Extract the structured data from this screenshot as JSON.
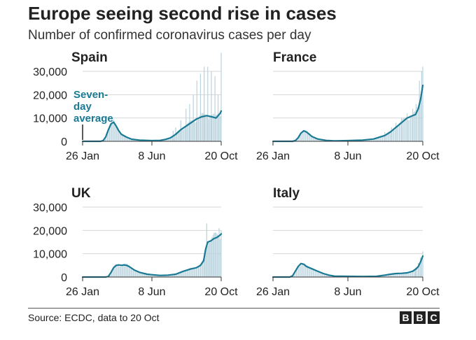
{
  "header": {
    "title": "Europe seeing second rise in cases",
    "subtitle": "Number of confirmed coronavirus cases per day"
  },
  "annotation": {
    "lines": [
      "Seven-",
      "day",
      "average"
    ]
  },
  "colors": {
    "line": "#1a7a94",
    "bars": "#b9d3de",
    "grid": "#d7d7d7",
    "text": "#222222"
  },
  "footer": {
    "source": "Source: ECDC, data to 20 Oct",
    "logo": [
      "B",
      "B",
      "C"
    ]
  },
  "chart_data": [
    {
      "type": "bar",
      "title": "Spain",
      "x_ticks": [
        {
          "day": 0,
          "label": "26 Jan"
        },
        {
          "day": 134,
          "label": "8 Jun"
        },
        {
          "day": 268,
          "label": "20 Oct"
        }
      ],
      "y_ticks": [
        {
          "value": 0,
          "label": "0"
        },
        {
          "value": 10000,
          "label": "10,000"
        },
        {
          "value": 20000,
          "label": "20,000"
        },
        {
          "value": 30000,
          "label": "30,000"
        }
      ],
      "ylim": [
        0,
        30000
      ],
      "show_y_labels": true,
      "seven_day_average": [
        [
          0,
          0
        ],
        [
          35,
          0
        ],
        [
          40,
          400
        ],
        [
          45,
          2000
        ],
        [
          50,
          5000
        ],
        [
          55,
          7500
        ],
        [
          60,
          8200
        ],
        [
          65,
          6500
        ],
        [
          70,
          4500
        ],
        [
          75,
          3000
        ],
        [
          85,
          1800
        ],
        [
          95,
          900
        ],
        [
          110,
          500
        ],
        [
          134,
          300
        ],
        [
          150,
          400
        ],
        [
          160,
          800
        ],
        [
          170,
          1500
        ],
        [
          180,
          3000
        ],
        [
          190,
          5000
        ],
        [
          200,
          6500
        ],
        [
          210,
          8000
        ],
        [
          220,
          9500
        ],
        [
          230,
          10500
        ],
        [
          240,
          11000
        ],
        [
          250,
          10500
        ],
        [
          258,
          10000
        ],
        [
          262,
          11000
        ],
        [
          266,
          12000
        ],
        [
          268,
          13000
        ]
      ],
      "daily_spikes": [
        [
          175,
          4500
        ],
        [
          180,
          6000
        ],
        [
          190,
          9000
        ],
        [
          200,
          14000
        ],
        [
          207,
          16000
        ],
        [
          214,
          20000
        ],
        [
          221,
          26000
        ],
        [
          228,
          29000
        ],
        [
          235,
          32000
        ],
        [
          242,
          32000
        ],
        [
          249,
          30000
        ],
        [
          256,
          28000
        ],
        [
          262,
          20000
        ],
        [
          268,
          38000
        ]
      ]
    },
    {
      "type": "bar",
      "title": "France",
      "x_ticks": [
        {
          "day": 0,
          "label": "26 Jan"
        },
        {
          "day": 134,
          "label": "8 Jun"
        },
        {
          "day": 268,
          "label": "20 Oct"
        }
      ],
      "y_ticks": [
        {
          "value": 0,
          "label": "0"
        },
        {
          "value": 10000,
          "label": "10,000"
        },
        {
          "value": 20000,
          "label": "20,000"
        },
        {
          "value": 30000,
          "label": "30,000"
        }
      ],
      "ylim": [
        0,
        30000
      ],
      "show_y_labels": false,
      "seven_day_average": [
        [
          0,
          0
        ],
        [
          35,
          0
        ],
        [
          40,
          300
        ],
        [
          45,
          1500
        ],
        [
          50,
          3500
        ],
        [
          55,
          4500
        ],
        [
          60,
          4000
        ],
        [
          65,
          3000
        ],
        [
          70,
          2000
        ],
        [
          80,
          1000
        ],
        [
          95,
          400
        ],
        [
          110,
          200
        ],
        [
          134,
          300
        ],
        [
          160,
          500
        ],
        [
          180,
          1000
        ],
        [
          200,
          2500
        ],
        [
          210,
          4000
        ],
        [
          220,
          6000
        ],
        [
          230,
          8000
        ],
        [
          240,
          10000
        ],
        [
          250,
          11000
        ],
        [
          255,
          11500
        ],
        [
          260,
          14000
        ],
        [
          264,
          18000
        ],
        [
          268,
          24000
        ]
      ],
      "daily_spikes": [
        [
          200,
          4000
        ],
        [
          212,
          6000
        ],
        [
          220,
          8000
        ],
        [
          230,
          10000
        ],
        [
          240,
          12000
        ],
        [
          250,
          14000
        ],
        [
          256,
          16000
        ],
        [
          262,
          26000
        ],
        [
          266,
          30000
        ],
        [
          268,
          32000
        ]
      ]
    },
    {
      "type": "bar",
      "title": "UK",
      "x_ticks": [
        {
          "day": 0,
          "label": "26 Jan"
        },
        {
          "day": 134,
          "label": "8 Jun"
        },
        {
          "day": 268,
          "label": "20 Oct"
        }
      ],
      "y_ticks": [
        {
          "value": 0,
          "label": "0"
        },
        {
          "value": 10000,
          "label": "10,000"
        },
        {
          "value": 20000,
          "label": "20,000"
        },
        {
          "value": 30000,
          "label": "30,000"
        }
      ],
      "ylim": [
        0,
        30000
      ],
      "show_y_labels": true,
      "seven_day_average": [
        [
          0,
          0
        ],
        [
          45,
          0
        ],
        [
          50,
          300
        ],
        [
          55,
          2000
        ],
        [
          60,
          4000
        ],
        [
          65,
          5000
        ],
        [
          70,
          5200
        ],
        [
          75,
          5000
        ],
        [
          80,
          5200
        ],
        [
          85,
          5000
        ],
        [
          90,
          4500
        ],
        [
          100,
          3000
        ],
        [
          110,
          2000
        ],
        [
          125,
          1200
        ],
        [
          134,
          1000
        ],
        [
          150,
          700
        ],
        [
          165,
          800
        ],
        [
          180,
          1200
        ],
        [
          195,
          2500
        ],
        [
          210,
          3500
        ],
        [
          220,
          4000
        ],
        [
          228,
          5000
        ],
        [
          234,
          7000
        ],
        [
          238,
          12000
        ],
        [
          242,
          15000
        ],
        [
          248,
          15500
        ],
        [
          254,
          16500
        ],
        [
          260,
          17000
        ],
        [
          266,
          18000
        ],
        [
          268,
          18500
        ]
      ],
      "daily_spikes": [
        [
          236,
          8000
        ],
        [
          240,
          23000
        ],
        [
          244,
          15000
        ],
        [
          248,
          16000
        ],
        [
          252,
          17000
        ],
        [
          256,
          19000
        ],
        [
          260,
          18000
        ],
        [
          264,
          21000
        ],
        [
          268,
          20000
        ]
      ]
    },
    {
      "type": "bar",
      "title": "Italy",
      "x_ticks": [
        {
          "day": 0,
          "label": "26 Jan"
        },
        {
          "day": 134,
          "label": "8 Jun"
        },
        {
          "day": 268,
          "label": "20 Oct"
        }
      ],
      "y_ticks": [
        {
          "value": 0,
          "label": "0"
        },
        {
          "value": 10000,
          "label": "10,000"
        },
        {
          "value": 20000,
          "label": "20,000"
        },
        {
          "value": 30000,
          "label": "30,000"
        }
      ],
      "ylim": [
        0,
        30000
      ],
      "show_y_labels": false,
      "seven_day_average": [
        [
          0,
          0
        ],
        [
          30,
          0
        ],
        [
          35,
          500
        ],
        [
          40,
          2500
        ],
        [
          45,
          4500
        ],
        [
          50,
          5800
        ],
        [
          55,
          5500
        ],
        [
          60,
          4500
        ],
        [
          70,
          3500
        ],
        [
          80,
          2500
        ],
        [
          90,
          1500
        ],
        [
          100,
          800
        ],
        [
          110,
          400
        ],
        [
          134,
          300
        ],
        [
          160,
          250
        ],
        [
          185,
          300
        ],
        [
          200,
          800
        ],
        [
          210,
          1200
        ],
        [
          220,
          1500
        ],
        [
          230,
          1600
        ],
        [
          240,
          1800
        ],
        [
          250,
          2500
        ],
        [
          256,
          3500
        ],
        [
          260,
          4500
        ],
        [
          264,
          6500
        ],
        [
          268,
          9000
        ]
      ],
      "daily_spikes": [
        [
          255,
          4000
        ],
        [
          260,
          6000
        ],
        [
          264,
          8500
        ],
        [
          268,
          11000
        ]
      ]
    }
  ]
}
